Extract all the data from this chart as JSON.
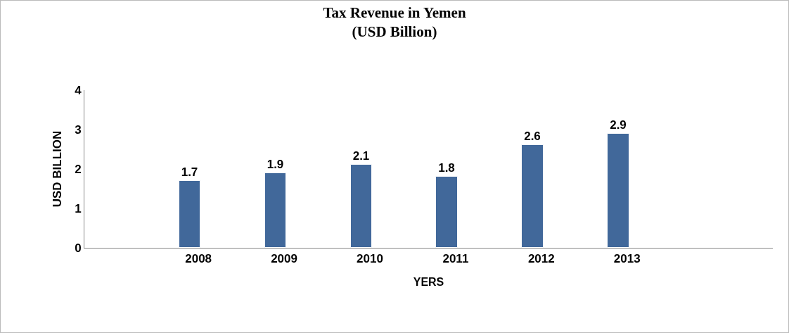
{
  "chart_data": {
    "type": "bar",
    "title": "Tax Revenue in Yemen\n(USD Billion)",
    "xlabel": "YERS",
    "ylabel": "USD BILLION",
    "categories": [
      "2008",
      "2009",
      "2010",
      "2011",
      "2012",
      "2013"
    ],
    "values": [
      1.7,
      1.9,
      2.1,
      1.8,
      2.6,
      2.9
    ],
    "color": "#41689a",
    "ylim": [
      0,
      4
    ],
    "yticks": [
      0,
      1,
      2,
      3,
      4
    ],
    "grid": false,
    "data_labels": true
  }
}
